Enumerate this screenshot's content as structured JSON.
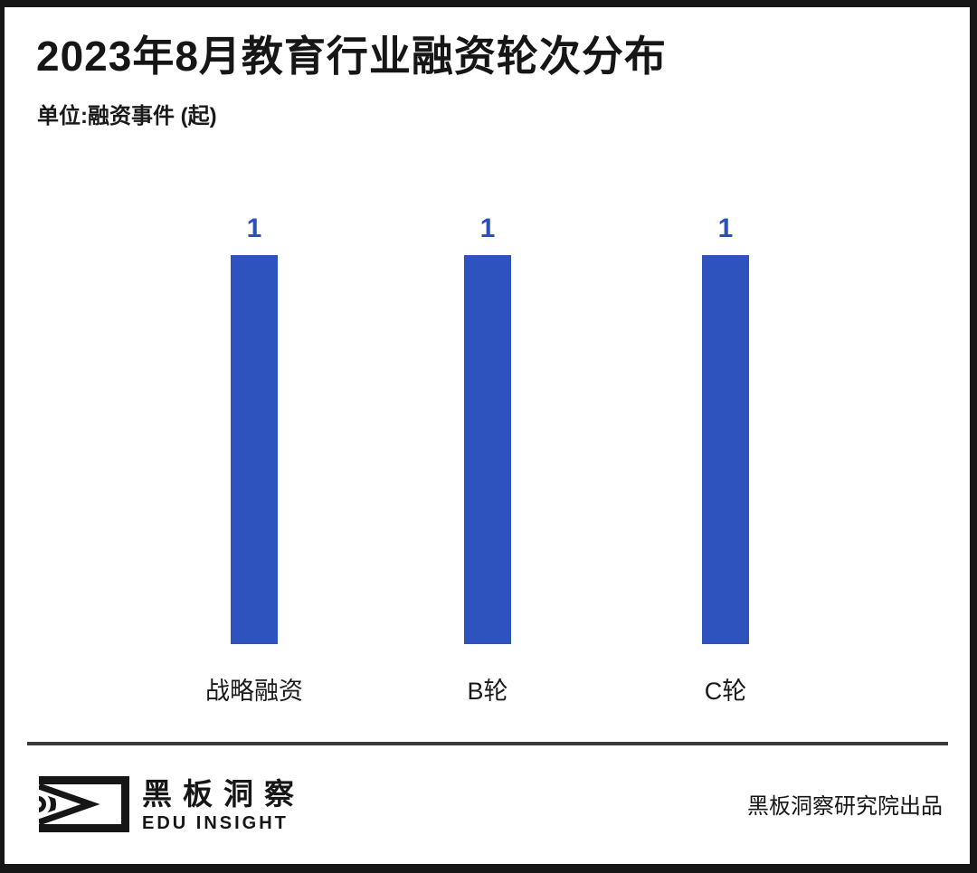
{
  "header": {
    "title": "2023年8月教育行业融资轮次分布",
    "unit": "单位:融资事件 (起)"
  },
  "chart_data": {
    "type": "bar",
    "title": "2023年8月教育行业融资轮次分布",
    "unit_label": "单位:融资事件 (起)",
    "categories": [
      "战略融资",
      "B轮",
      "C轮"
    ],
    "values": [
      1,
      1,
      1
    ],
    "ylim": [
      0,
      1
    ],
    "grid": false,
    "legend": false,
    "value_labels_shown": true,
    "bar_color": "#2E53BF",
    "value_label_color": "#2B50BD"
  },
  "footer": {
    "brand_cn": "黑板洞察",
    "brand_en": "EDU INSIGHT",
    "credit": "黑板洞察研究院出品",
    "logo_icon": "eye-logo-icon"
  },
  "colors": {
    "background": "#ffffff",
    "frame": "#161616",
    "title_text": "#161616",
    "divider": "#3a3a3a",
    "bar": "#2E53BF"
  }
}
